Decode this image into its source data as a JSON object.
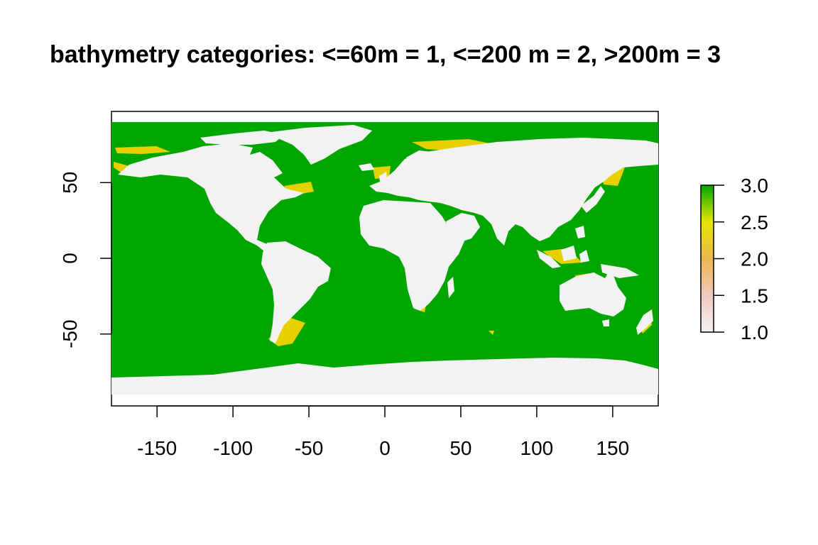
{
  "title": "bathymetry categories: <=60m = 1, <=200 m = 2, >200m = 3",
  "colors": {
    "deep": "#00A600",
    "mid": "#E6E600",
    "shallow": "#EAB64E",
    "land": "#F2F2F2",
    "frame": "#000000"
  },
  "chart_data": {
    "type": "heatmap",
    "title": "bathymetry categories: <=60m = 1, <=200 m = 2, >200m = 3",
    "xlabel": "",
    "ylabel": "",
    "xlim": [
      -180,
      180
    ],
    "ylim": [
      -90,
      90
    ],
    "x_ticks": [
      -150,
      -100,
      -50,
      0,
      50,
      100,
      150
    ],
    "x_tick_labels": [
      "-150",
      "-100",
      "-50",
      "0",
      "50",
      "100",
      "150"
    ],
    "y_ticks": [
      -50,
      0,
      50
    ],
    "y_tick_labels": [
      "-50",
      "0",
      "50"
    ],
    "raster_extent": {
      "xmin": -180,
      "xmax": 180,
      "ymin": -90,
      "ymax": 90
    },
    "legend": {
      "position": "right",
      "range": [
        1.0,
        3.0
      ],
      "ticks": [
        1.0,
        1.5,
        2.0,
        2.5,
        3.0
      ],
      "tick_labels": [
        "1.0",
        "1.5",
        "2.0",
        "2.5",
        "3.0"
      ],
      "palette": [
        "#F2F2F2",
        "#F0C9C0",
        "#EAB64E",
        "#E6E600",
        "#00A600"
      ]
    }
  }
}
